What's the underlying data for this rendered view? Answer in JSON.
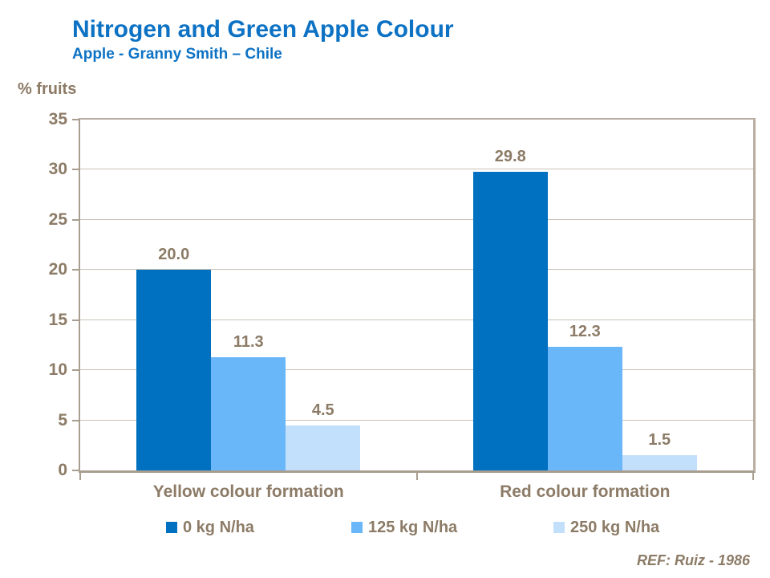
{
  "slide": {
    "title": "Nitrogen and Green Apple Colour",
    "subtitle": "Apple - Granny Smith – Chile",
    "axis_title": "% fruits",
    "footer_ref": "REF: Ruiz - 1986"
  },
  "colors": {
    "title_blue": "#0d72c4",
    "text_brown": "#8c7b66",
    "axis_line": "#a89d8f",
    "border_line": "#b8aea1",
    "grid_line": "#c9c1b5",
    "series": [
      "#0070c0",
      "#69b6f9",
      "#c2e0fb"
    ]
  },
  "chart_data": {
    "type": "bar",
    "title": "Nitrogen and Green Apple Colour",
    "subtitle": "Apple - Granny Smith – Chile",
    "ylabel": "% fruits",
    "xlabel": "",
    "ylim": [
      0,
      35
    ],
    "yticks": [
      0,
      5,
      10,
      15,
      20,
      25,
      30,
      35
    ],
    "grid": true,
    "legend_position": "bottom",
    "categories": [
      "Yellow colour formation",
      "Red colour formation"
    ],
    "series": [
      {
        "name": "0 kg N/ha",
        "values": [
          20.0,
          29.8
        ],
        "labels": [
          "20.0",
          "29.8"
        ]
      },
      {
        "name": "125 kg N/ha",
        "values": [
          11.3,
          12.3
        ],
        "labels": [
          "11.3",
          "12.3"
        ]
      },
      {
        "name": "250 kg N/ha",
        "values": [
          4.5,
          1.5
        ],
        "labels": [
          "4.5",
          "1.5"
        ]
      }
    ],
    "reference": "REF: Ruiz - 1986"
  }
}
